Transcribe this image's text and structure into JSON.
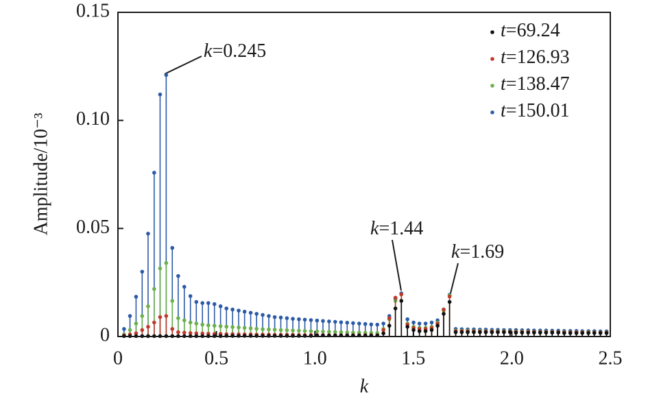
{
  "chart_data": {
    "type": "stem",
    "xlabel": "k",
    "ylabel": "Amplitude/10⁻³",
    "xlim": [
      0,
      2.5
    ],
    "ylim": [
      0,
      0.15
    ],
    "xticks": [
      0,
      0.5,
      {
        "value": 1,
        "label": "1.0"
      },
      1.5,
      {
        "value": 2,
        "label": "2.0"
      },
      2.5
    ],
    "yticks": [
      0,
      0.05,
      {
        "value": 0.1,
        "label": "0.10"
      },
      0.15
    ],
    "legend": "upper right",
    "annotations": [
      "k=0.245",
      "k=1.44",
      "k=1.69"
    ],
    "x": [
      0.031,
      0.061,
      0.092,
      0.123,
      0.153,
      0.184,
      0.214,
      0.245,
      0.276,
      0.306,
      0.337,
      0.368,
      0.398,
      0.429,
      0.459,
      0.49,
      0.521,
      0.551,
      0.582,
      0.613,
      0.643,
      0.674,
      0.704,
      0.735,
      0.766,
      0.796,
      0.827,
      0.858,
      0.888,
      0.919,
      0.949,
      0.98,
      1.011,
      1.041,
      1.072,
      1.103,
      1.133,
      1.164,
      1.194,
      1.225,
      1.256,
      1.286,
      1.317,
      1.348,
      1.378,
      1.409,
      1.439,
      1.47,
      1.501,
      1.531,
      1.562,
      1.593,
      1.623,
      1.654,
      1.684,
      1.715,
      1.746,
      1.776,
      1.807,
      1.838,
      1.868,
      1.899,
      1.929,
      1.96,
      1.991,
      2.021,
      2.052,
      2.083,
      2.113,
      2.144,
      2.174,
      2.205,
      2.236,
      2.266,
      2.297,
      2.328,
      2.358,
      2.389,
      2.419,
      2.45,
      2.481
    ],
    "series": [
      {
        "name": "t=150.01",
        "color": "#2b5aa8",
        "values": [
          0.0035,
          0.0095,
          0.0184,
          0.03,
          0.0476,
          0.0758,
          0.112,
          0.121,
          0.041,
          0.028,
          0.023,
          0.0187,
          0.016,
          0.0155,
          0.0155,
          0.015,
          0.014,
          0.013,
          0.0125,
          0.012,
          0.0115,
          0.011,
          0.0105,
          0.01,
          0.0095,
          0.009,
          0.0088,
          0.0085,
          0.0082,
          0.008,
          0.0078,
          0.0076,
          0.0074,
          0.0072,
          0.007,
          0.0068,
          0.0066,
          0.0064,
          0.0062,
          0.006,
          0.0058,
          0.0056,
          0.0055,
          0.006,
          0.0095,
          0.0175,
          0.02,
          0.008,
          0.0065,
          0.006,
          0.006,
          0.0065,
          0.0075,
          0.0125,
          0.0193,
          0.0035,
          0.0034,
          0.0033,
          0.0033,
          0.0032,
          0.0032,
          0.0031,
          0.0031,
          0.003,
          0.003,
          0.003,
          0.0029,
          0.0029,
          0.0028,
          0.0028,
          0.0028,
          0.0027,
          0.0027,
          0.0026,
          0.0026,
          0.0026,
          0.0025,
          0.0025,
          0.0025,
          0.0024,
          0.0024
        ]
      },
      {
        "name": "t=138.47",
        "color": "#6ab04c",
        "values": [
          0.001,
          0.003,
          0.006,
          0.0095,
          0.014,
          0.022,
          0.0315,
          0.034,
          0.0165,
          0.0085,
          0.0075,
          0.0065,
          0.006,
          0.0055,
          0.0052,
          0.005,
          0.0048,
          0.0046,
          0.0044,
          0.0042,
          0.004,
          0.0038,
          0.0036,
          0.0034,
          0.0033,
          0.0032,
          0.003,
          0.0029,
          0.0028,
          0.0027,
          0.0026,
          0.0025,
          0.0024,
          0.0023,
          0.0022,
          0.0021,
          0.002,
          0.0019,
          0.0018,
          0.0018,
          0.0017,
          0.0017,
          0.0016,
          0.0035,
          0.008,
          0.0165,
          0.0195,
          0.006,
          0.0045,
          0.004,
          0.004,
          0.0045,
          0.0065,
          0.012,
          0.019,
          0.0028,
          0.0027,
          0.0027,
          0.0026,
          0.0026,
          0.0025,
          0.0025,
          0.0024,
          0.0024,
          0.0024,
          0.0023,
          0.0023,
          0.0023,
          0.0022,
          0.0022,
          0.0022,
          0.0021,
          0.0021,
          0.0021,
          0.002,
          0.002,
          0.002,
          0.002,
          0.0019,
          0.0019,
          0.0019
        ]
      },
      {
        "name": "t=126.93",
        "color": "#c0392b",
        "values": [
          0.0005,
          0.001,
          0.0015,
          0.003,
          0.0045,
          0.0065,
          0.009,
          0.0095,
          0.0035,
          0.002,
          0.0018,
          0.0016,
          0.0015,
          0.0014,
          0.0013,
          0.0012,
          0.0012,
          0.0011,
          0.0011,
          0.001,
          0.001,
          0.001,
          0.0009,
          0.0009,
          0.0009,
          0.0008,
          0.0008,
          0.0008,
          0.0008,
          0.0007,
          0.0007,
          0.0007,
          0.0007,
          0.0007,
          0.0006,
          0.0006,
          0.0006,
          0.0006,
          0.0006,
          0.0006,
          0.0006,
          0.0006,
          0.0006,
          0.003,
          0.0085,
          0.018,
          0.0195,
          0.0055,
          0.004,
          0.0035,
          0.0035,
          0.004,
          0.006,
          0.0125,
          0.0185,
          0.0025,
          0.0025,
          0.0024,
          0.0024,
          0.0023,
          0.0023,
          0.0023,
          0.0022,
          0.0022,
          0.0022,
          0.0021,
          0.0021,
          0.0021,
          0.0021,
          0.002,
          0.002,
          0.002,
          0.002,
          0.0019,
          0.0019,
          0.0019,
          0.0019,
          0.0018,
          0.0018,
          0.0018,
          0.0018
        ]
      },
      {
        "name": "t=69.24",
        "color": "#111111",
        "values": [
          0.0002,
          0.0002,
          0.0002,
          0.0002,
          0.0002,
          0.0002,
          0.0002,
          0.0002,
          0.0002,
          0.0002,
          0.0002,
          0.0002,
          0.0002,
          0.0002,
          0.0002,
          0.0002,
          0.0002,
          0.0003,
          0.0003,
          0.0003,
          0.0003,
          0.0003,
          0.0003,
          0.0003,
          0.0003,
          0.0003,
          0.0003,
          0.0003,
          0.0003,
          0.0003,
          0.0003,
          0.0003,
          0.0005,
          0.0005,
          0.0005,
          0.0005,
          0.0005,
          0.0005,
          0.0005,
          0.0005,
          0.0005,
          0.0005,
          0.0005,
          0.0015,
          0.005,
          0.013,
          0.0165,
          0.0045,
          0.003,
          0.0025,
          0.0025,
          0.003,
          0.005,
          0.0105,
          0.016,
          0.002,
          0.002,
          0.002,
          0.002,
          0.002,
          0.002,
          0.002,
          0.002,
          0.002,
          0.002,
          0.0018,
          0.0018,
          0.0018,
          0.0018,
          0.0018,
          0.0018,
          0.0018,
          0.0018,
          0.0016,
          0.0016,
          0.0016,
          0.0016,
          0.0016,
          0.0016,
          0.0016,
          0.0016
        ]
      }
    ]
  }
}
